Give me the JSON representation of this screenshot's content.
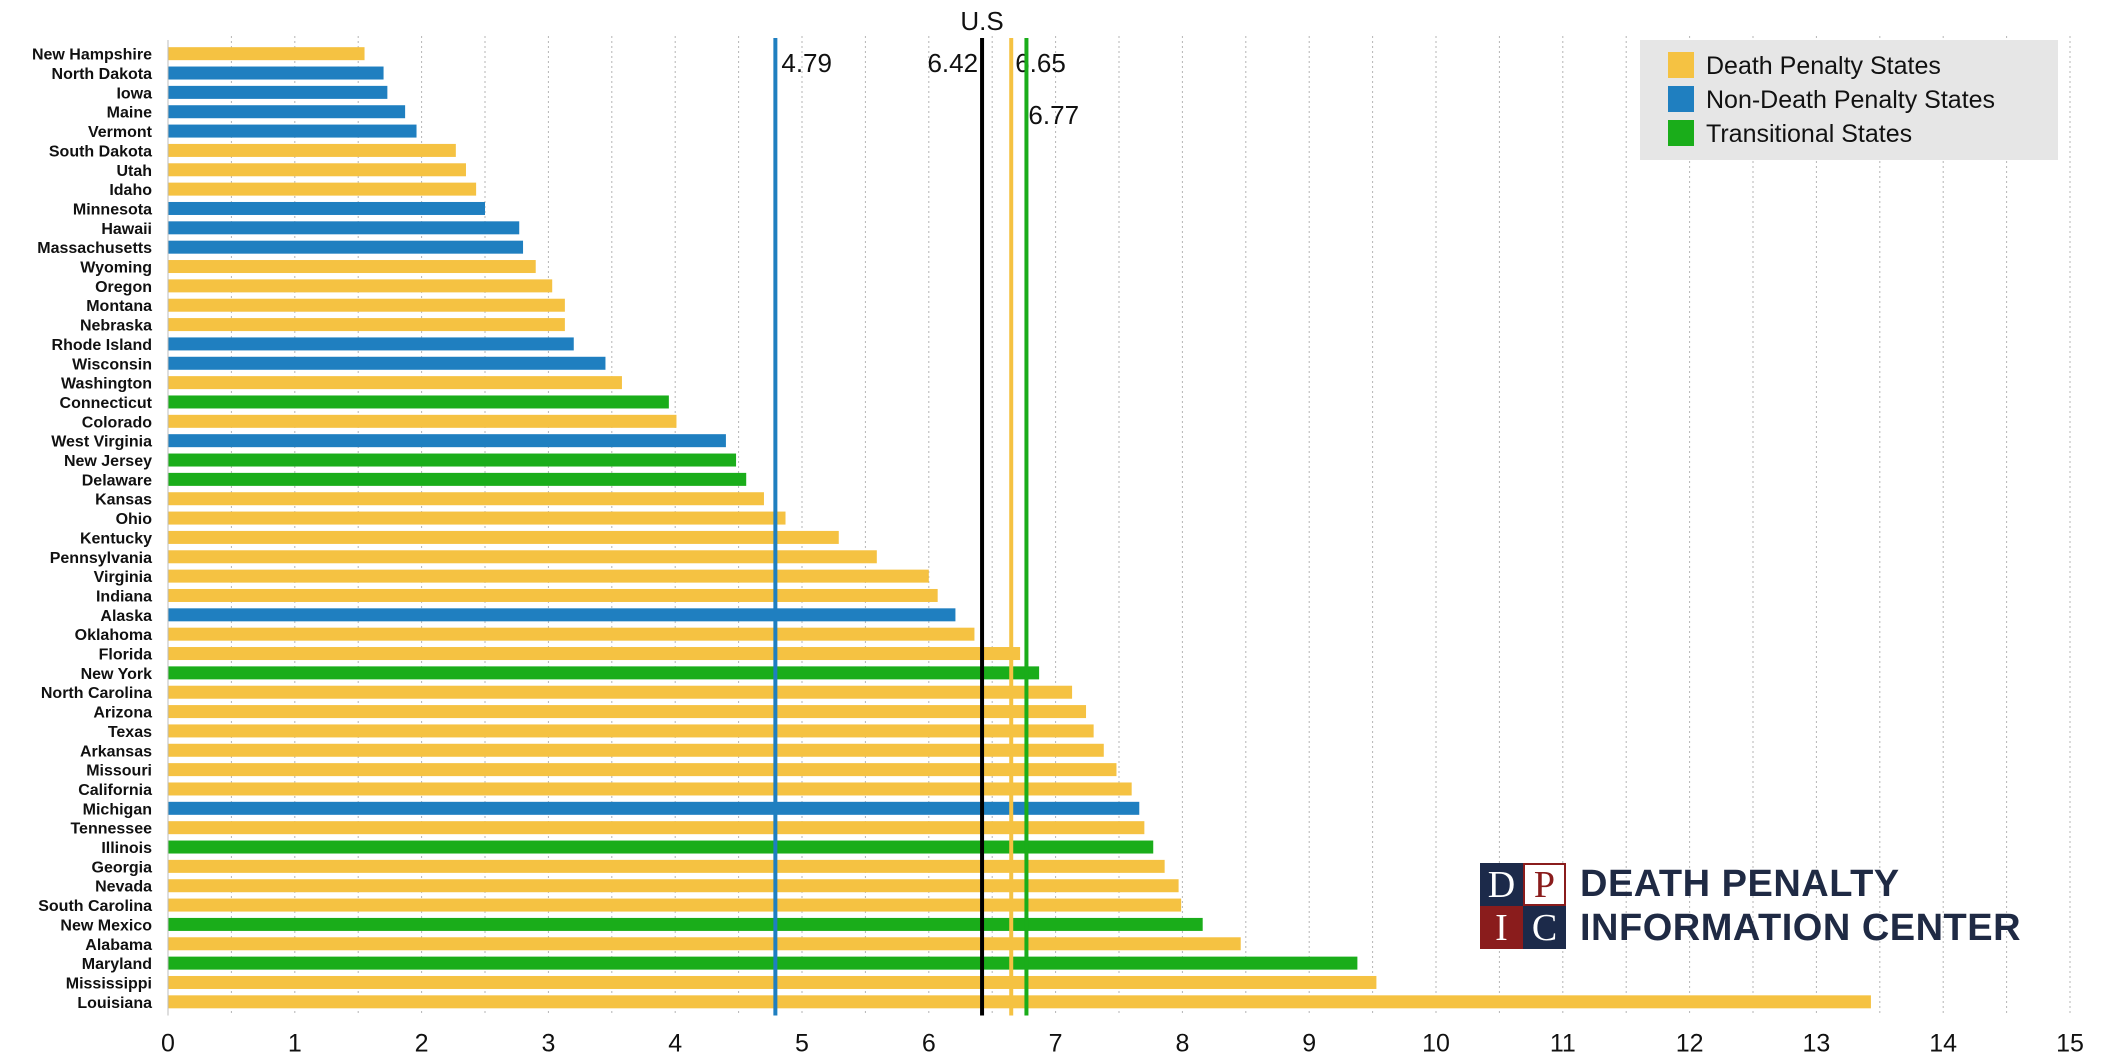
{
  "chart_data": {
    "type": "bar",
    "orientation": "horizontal",
    "title": "",
    "xlabel": "",
    "ylabel": "",
    "xlim": [
      0,
      15
    ],
    "xticks": [
      "0",
      "1",
      "2",
      "3",
      "4",
      "5",
      "6",
      "7",
      "8",
      "9",
      "10",
      "11",
      "12",
      "13",
      "14",
      "15"
    ],
    "grid": "vertical dotted lines at every 0.5",
    "legend_placement": "top-right",
    "series_colors": {
      "death": "#f5c242",
      "nondeath": "#1f7fc0",
      "transitional": "#1aad1a"
    },
    "legend": [
      {
        "key": "death",
        "label": "Death Penalty States"
      },
      {
        "key": "nondeath",
        "label": "Non-Death Penalty States"
      },
      {
        "key": "transitional",
        "label": "Transitional States"
      }
    ],
    "reference_lines": [
      {
        "key": "nondeath",
        "value": 4.79,
        "label": "4.79",
        "color": "#1f7fc0"
      },
      {
        "key": "us",
        "value": 6.42,
        "label": "6.42",
        "header": "U.S",
        "color": "#000000"
      },
      {
        "key": "death",
        "value": 6.65,
        "label": "6.65",
        "color": "#f5c242"
      },
      {
        "key": "transitional",
        "value": 6.77,
        "label": "6.77",
        "color": "#1aad1a"
      }
    ],
    "bars": [
      {
        "state": "New Hampshire",
        "value": 1.55,
        "group": "death"
      },
      {
        "state": "North Dakota",
        "value": 1.7,
        "group": "nondeath"
      },
      {
        "state": "Iowa",
        "value": 1.73,
        "group": "nondeath"
      },
      {
        "state": "Maine",
        "value": 1.87,
        "group": "nondeath"
      },
      {
        "state": "Vermont",
        "value": 1.96,
        "group": "nondeath"
      },
      {
        "state": "South Dakota",
        "value": 2.27,
        "group": "death"
      },
      {
        "state": "Utah",
        "value": 2.35,
        "group": "death"
      },
      {
        "state": "Idaho",
        "value": 2.43,
        "group": "death"
      },
      {
        "state": "Minnesota",
        "value": 2.5,
        "group": "nondeath"
      },
      {
        "state": "Hawaii",
        "value": 2.77,
        "group": "nondeath"
      },
      {
        "state": "Massachusetts",
        "value": 2.8,
        "group": "nondeath"
      },
      {
        "state": "Wyoming",
        "value": 2.9,
        "group": "death"
      },
      {
        "state": "Oregon",
        "value": 3.03,
        "group": "death"
      },
      {
        "state": "Montana",
        "value": 3.13,
        "group": "death"
      },
      {
        "state": "Nebraska",
        "value": 3.13,
        "group": "death"
      },
      {
        "state": "Rhode Island",
        "value": 3.2,
        "group": "nondeath"
      },
      {
        "state": "Wisconsin",
        "value": 3.45,
        "group": "nondeath"
      },
      {
        "state": "Washington",
        "value": 3.58,
        "group": "death"
      },
      {
        "state": "Connecticut",
        "value": 3.95,
        "group": "transitional"
      },
      {
        "state": "Colorado",
        "value": 4.01,
        "group": "death"
      },
      {
        "state": "West Virginia",
        "value": 4.4,
        "group": "nondeath"
      },
      {
        "state": "New Jersey",
        "value": 4.48,
        "group": "transitional"
      },
      {
        "state": "Delaware",
        "value": 4.56,
        "group": "transitional"
      },
      {
        "state": "Kansas",
        "value": 4.7,
        "group": "death"
      },
      {
        "state": "Ohio",
        "value": 4.87,
        "group": "death"
      },
      {
        "state": "Kentucky",
        "value": 5.29,
        "group": "death"
      },
      {
        "state": "Pennsylvania",
        "value": 5.59,
        "group": "death"
      },
      {
        "state": "Virginia",
        "value": 6.0,
        "group": "death"
      },
      {
        "state": "Indiana",
        "value": 6.07,
        "group": "death"
      },
      {
        "state": "Alaska",
        "value": 6.21,
        "group": "nondeath"
      },
      {
        "state": "Oklahoma",
        "value": 6.36,
        "group": "death"
      },
      {
        "state": "Florida",
        "value": 6.72,
        "group": "death"
      },
      {
        "state": "New York",
        "value": 6.87,
        "group": "transitional"
      },
      {
        "state": "North Carolina",
        "value": 7.13,
        "group": "death"
      },
      {
        "state": "Arizona",
        "value": 7.24,
        "group": "death"
      },
      {
        "state": "Texas",
        "value": 7.3,
        "group": "death"
      },
      {
        "state": "Arkansas",
        "value": 7.38,
        "group": "death"
      },
      {
        "state": "Missouri",
        "value": 7.48,
        "group": "death"
      },
      {
        "state": "California",
        "value": 7.6,
        "group": "death"
      },
      {
        "state": "Michigan",
        "value": 7.66,
        "group": "nondeath"
      },
      {
        "state": "Tennessee",
        "value": 7.7,
        "group": "death"
      },
      {
        "state": "Illinois",
        "value": 7.77,
        "group": "transitional"
      },
      {
        "state": "Georgia",
        "value": 7.86,
        "group": "death"
      },
      {
        "state": "Nevada",
        "value": 7.97,
        "group": "death"
      },
      {
        "state": "South Carolina",
        "value": 7.99,
        "group": "death"
      },
      {
        "state": "New Mexico",
        "value": 8.16,
        "group": "transitional"
      },
      {
        "state": "Alabama",
        "value": 8.46,
        "group": "death"
      },
      {
        "state": "Maryland",
        "value": 9.38,
        "group": "transitional"
      },
      {
        "state": "Mississippi",
        "value": 9.53,
        "group": "death"
      },
      {
        "state": "Louisiana",
        "value": 13.43,
        "group": "death"
      }
    ]
  },
  "logo": {
    "letters": [
      "D",
      "P",
      "I",
      "C"
    ],
    "line1": "DEATH PENALTY",
    "line2": "INFORMATION CENTER",
    "colors": {
      "navy": "#1c2a4a",
      "maroon": "#8a1c1c"
    }
  }
}
